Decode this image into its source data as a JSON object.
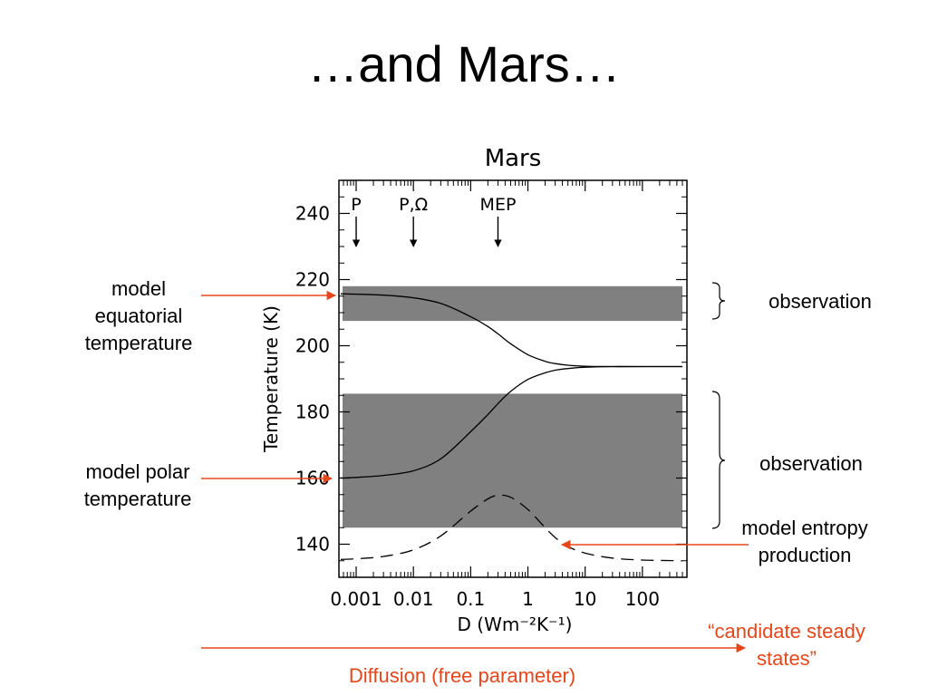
{
  "slide": {
    "title": "…and Mars…"
  },
  "annotations": {
    "model_equatorial": "model equatorial temperature",
    "model_polar": "model polar temperature",
    "observation_top": "observation",
    "observation_bottom": "observation",
    "model_entropy": "model entropy production",
    "candidate": "“candidate steady states”",
    "diffusion": "Diffusion (free parameter)"
  },
  "colors": {
    "accent_red": "#e8461a",
    "observation_band": "#808080"
  },
  "chart_data": {
    "type": "line",
    "title": "Mars",
    "xlabel": "D (Wm⁻²K⁻¹)",
    "ylabel": "Temperature (K)",
    "x_scale": "log",
    "xlim": [
      0.0005,
      600
    ],
    "ylim": [
      130,
      250
    ],
    "x_ticks": [
      0.001,
      0.01,
      0.1,
      1,
      10,
      100
    ],
    "x_tick_labels": [
      "0.001",
      "0.01",
      "0.1",
      "1",
      "10",
      "100"
    ],
    "y_ticks": [
      140,
      160,
      180,
      200,
      220,
      240
    ],
    "y_tick_labels": [
      "140",
      "160",
      "180",
      "200",
      "220",
      "240"
    ],
    "observation_bands": [
      {
        "ymin": 207.5,
        "ymax": 218
      },
      {
        "ymin": 145,
        "ymax": 185.5
      }
    ],
    "markers": [
      {
        "label": "P",
        "x": 0.001
      },
      {
        "label": "P,Ω",
        "x": 0.01
      },
      {
        "label": "MEP",
        "x": 0.3
      }
    ],
    "series": [
      {
        "style": "solid",
        "x": [
          0.0005,
          0.001,
          0.003,
          0.01,
          0.03,
          0.1,
          0.2,
          0.3,
          0.5,
          1,
          2,
          3,
          5,
          10,
          30,
          100,
          500
        ],
        "y": [
          215.7,
          215.6,
          215.3,
          214.5,
          212.8,
          208.8,
          205.8,
          203.6,
          200.6,
          197.3,
          195.3,
          194.6,
          194.1,
          193.8,
          193.7,
          193.7,
          193.7
        ]
      },
      {
        "style": "solid",
        "x": [
          0.0005,
          0.001,
          0.003,
          0.01,
          0.03,
          0.1,
          0.2,
          0.3,
          0.5,
          1,
          2,
          3,
          5,
          10,
          30,
          100,
          500
        ],
        "y": [
          160.0,
          160.2,
          160.8,
          162.2,
          165.8,
          174.0,
          179.2,
          182.5,
          186.2,
          189.8,
          191.8,
          192.6,
          193.1,
          193.5,
          193.7,
          193.7,
          193.7
        ]
      },
      {
        "style": "dashed",
        "x": [
          0.0005,
          0.001,
          0.003,
          0.01,
          0.03,
          0.1,
          0.2,
          0.3,
          0.5,
          1,
          2,
          3,
          5,
          10,
          30,
          100,
          500
        ],
        "y": [
          135.4,
          135.6,
          136.3,
          138.3,
          142.5,
          150.0,
          153.7,
          154.8,
          154.2,
          150.5,
          145.0,
          142.0,
          139.3,
          137.3,
          135.8,
          135.2,
          135.0
        ]
      }
    ]
  }
}
